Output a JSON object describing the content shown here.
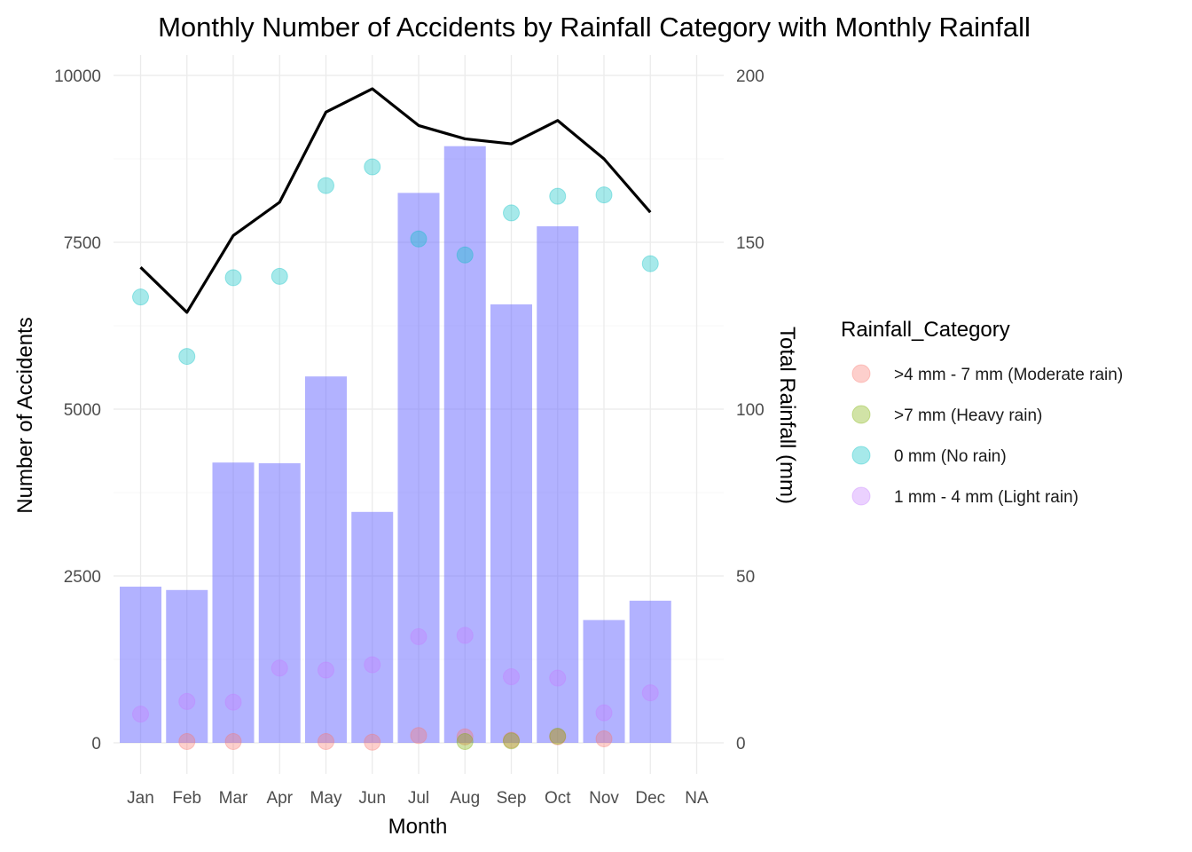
{
  "chart_data": {
    "type": "bar",
    "title": "Monthly Number of Accidents by Rainfall Category with Monthly Rainfall",
    "xlabel": "Month",
    "ylabel": "Number of Accidents",
    "y2label": "Total Rainfall (mm)",
    "categories": [
      "Jan",
      "Feb",
      "Mar",
      "Apr",
      "May",
      "Jun",
      "Jul",
      "Aug",
      "Sep",
      "Oct",
      "Nov",
      "Dec",
      "NA"
    ],
    "ylim": [
      0,
      10000
    ],
    "y_ticks": [
      0,
      2500,
      5000,
      7500,
      10000
    ],
    "y_tick_labels": [
      "0",
      "2500",
      "5000",
      "7500",
      "10000"
    ],
    "y2lim": [
      0,
      200
    ],
    "y2_ticks": [
      0,
      50,
      100,
      150,
      200
    ],
    "y2_tick_labels": [
      "0",
      "50",
      "100",
      "150",
      "200"
    ],
    "grid": true,
    "legend_position": "right",
    "legend_title": "Rainfall_Category",
    "bars": {
      "axis": "y",
      "color": "#6666ff",
      "opacity": 0.5,
      "values": [
        2340,
        2290,
        4200,
        4190,
        5490,
        3460,
        8240,
        8940,
        6570,
        7740,
        1840,
        2130,
        null
      ]
    },
    "line": {
      "axis": "y2",
      "color": "#000000",
      "values": [
        142.5,
        129,
        152,
        162,
        189,
        196,
        185,
        181,
        179.5,
        186.5,
        175,
        159,
        null
      ]
    },
    "series": [
      {
        "name": ">4 mm - 7 mm (Moderate rain)",
        "color": "#f8766d",
        "values": [
          null,
          20,
          20,
          null,
          20,
          10,
          110,
          90,
          40,
          90,
          60,
          null,
          null
        ]
      },
      {
        "name": ">7 mm (Heavy rain)",
        "color": "#7cae00",
        "values": [
          null,
          null,
          null,
          null,
          null,
          null,
          null,
          20,
          30,
          100,
          null,
          null,
          null
        ]
      },
      {
        "name": "0 mm (No rain)",
        "color": "#00bfc4",
        "values": [
          6680,
          5790,
          6970,
          6990,
          8350,
          8630,
          7550,
          7310,
          7940,
          8190,
          8210,
          7180,
          null
        ]
      },
      {
        "name": "1 mm - 4 mm (Light rain)",
        "color": "#c77cff",
        "values": [
          430,
          620,
          610,
          1120,
          1090,
          1170,
          1590,
          1610,
          990,
          970,
          450,
          750,
          null
        ]
      }
    ]
  }
}
